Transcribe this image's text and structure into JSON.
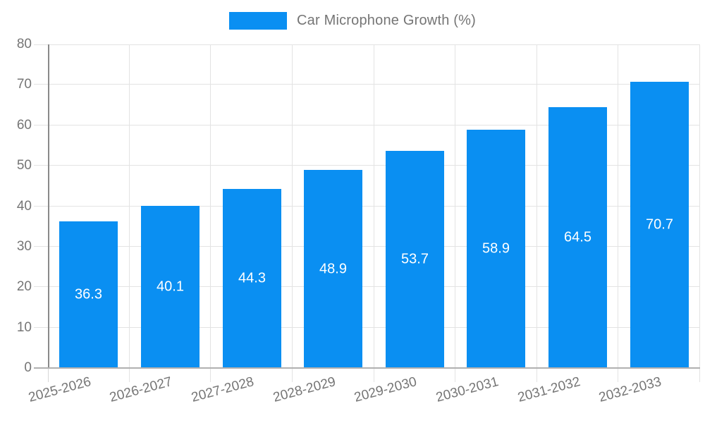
{
  "chart_data": {
    "type": "bar",
    "title": "Car Microphone Growth (%)",
    "legend": {
      "label": "Car Microphone Growth (%)",
      "position": "top"
    },
    "categories": [
      "2025-2026",
      "2026-2027",
      "2027-2028",
      "2028-2029",
      "2029-2030",
      "2030-2031",
      "2031-2032",
      "2032-2033"
    ],
    "values": [
      36.3,
      40.1,
      44.3,
      48.9,
      53.7,
      58.9,
      64.5,
      70.7
    ],
    "value_label_decimals": 1,
    "xlabel": "",
    "ylabel": "",
    "ylim": [
      0,
      80
    ],
    "yticks": [
      0,
      10,
      20,
      30,
      40,
      50,
      60,
      70,
      80
    ],
    "grid": true,
    "x_label_rotation_deg": -15,
    "colors": {
      "bar": "#0a8ff2",
      "value_label": "#ffffff",
      "axis_text": "#757575",
      "gridline": "#e3e3e3",
      "axis_line": "#8a8a8a",
      "baseline": "#b0b0b0",
      "tick": "#d6d6d6"
    }
  }
}
